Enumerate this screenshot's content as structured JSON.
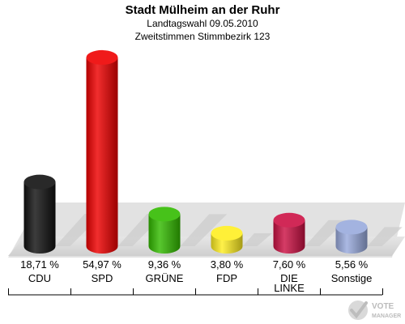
{
  "header": {
    "title": "Stadt Mülheim an der Ruhr",
    "subtitle1": "Landtagswahl 09.05.2010",
    "subtitle2": "Zweitstimmen Stimmbezirk 123"
  },
  "chart_data": {
    "type": "bar",
    "title": "Stadt Mülheim an der Ruhr",
    "subtitle": [
      "Landtagswahl 09.05.2010",
      "Zweitstimmen Stimmbezirk 123"
    ],
    "categories": [
      "CDU",
      "SPD",
      "GRÜNE",
      "FDP",
      "DIE LINKE",
      "Sonstige"
    ],
    "category_lines": [
      [
        "CDU"
      ],
      [
        "SPD"
      ],
      [
        "GRÜNE"
      ],
      [
        "FDP"
      ],
      [
        "DIE",
        "LINKE"
      ],
      [
        "Sonstige"
      ]
    ],
    "values": [
      18.71,
      54.97,
      9.36,
      3.8,
      7.6,
      5.56
    ],
    "value_labels": [
      "18,71 %",
      "54,97 %",
      "9,36 %",
      "3,80 %",
      "7,60 %",
      "5,56 %"
    ],
    "colors": [
      "#111111",
      "#ee0000",
      "#33bb00",
      "#ffee22",
      "#cc1144",
      "#99aadd"
    ],
    "unit": "%",
    "ylim": [
      0,
      55
    ],
    "grid": false,
    "legend": "none"
  },
  "logo": {
    "line1": "VOTE",
    "line2": "MANAGER"
  }
}
